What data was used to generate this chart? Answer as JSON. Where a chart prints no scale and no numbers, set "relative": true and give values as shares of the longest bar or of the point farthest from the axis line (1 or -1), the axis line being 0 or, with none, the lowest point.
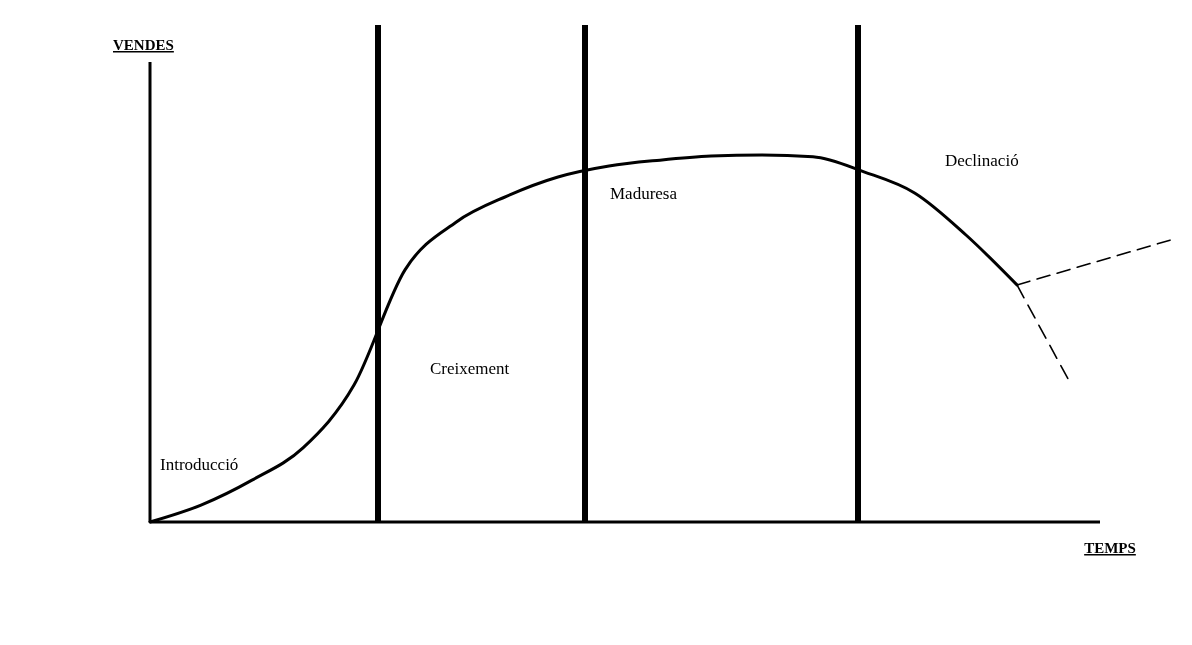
{
  "chart_data": {
    "type": "line",
    "relative": true,
    "xlabel": "TEMPS",
    "categories": [
      null,
      null,
      null,
      null,
      null,
      null,
      null,
      null,
      null,
      null,
      null,
      null,
      null,
      null,
      null,
      null,
      null,
      null,
      null,
      null,
      null
    ],
    "series": [
      {
        "color": "#000000",
        "line_style": "solid",
        "values": [
          0,
          0.046,
          0.114,
          0.202,
          0.373,
          0.687,
          0.817,
          0.888,
          0.94,
          0.97,
          0.986,
          0.997,
          1,
          0.995,
          0.954,
          0.896,
          0.782,
          0.646,
          null,
          null,
          null
        ]
      },
      {
        "color": "#000000",
        "line_style": "dashed",
        "values": [
          null,
          null,
          null,
          null,
          null,
          null,
          null,
          null,
          null,
          null,
          null,
          null,
          null,
          null,
          null,
          null,
          null,
          0.646,
          null,
          null,
          0.768
        ]
      },
      {
        "color": "#000000",
        "line_style": "dashed",
        "values": [
          null,
          null,
          null,
          null,
          null,
          null,
          null,
          null,
          null,
          null,
          null,
          null,
          null,
          null,
          null,
          null,
          null,
          0.646,
          0.39,
          null,
          null
        ]
      }
    ],
    "annotations": [
      "VENDES",
      "Introducció",
      "Creixement",
      "Maduresa",
      "Declinació"
    ]
  }
}
